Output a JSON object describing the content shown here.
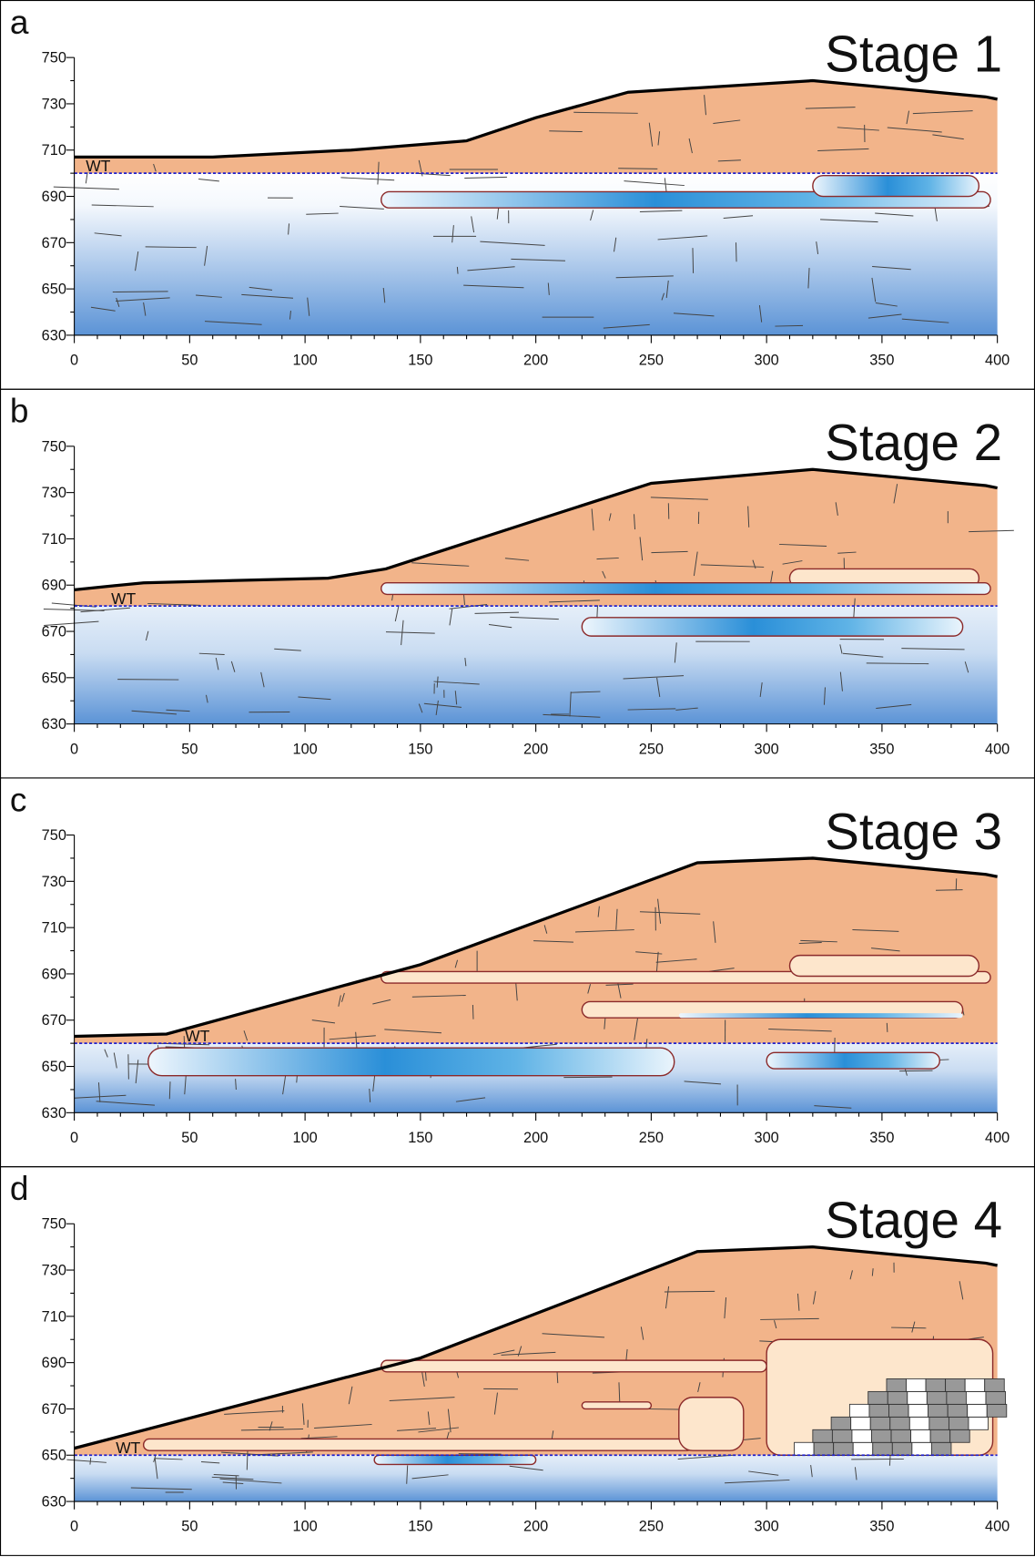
{
  "axes": {
    "xlim": [
      0,
      400
    ],
    "ylim": [
      630,
      750
    ],
    "xticks": [
      0,
      50,
      100,
      150,
      200,
      250,
      300,
      350,
      400
    ],
    "yticks": [
      630,
      650,
      670,
      690,
      710,
      730,
      750
    ]
  },
  "panels": [
    {
      "label": "a",
      "title": "Stage 1",
      "wt_label": "WT",
      "water_table": 700
    },
    {
      "label": "b",
      "title": "Stage 2",
      "wt_label": "WT",
      "water_table": 681
    },
    {
      "label": "c",
      "title": "Stage 3",
      "wt_label": "WT",
      "water_table": 660
    },
    {
      "label": "d",
      "title": "Stage 4",
      "wt_label": "WT",
      "water_table": 650
    }
  ]
}
